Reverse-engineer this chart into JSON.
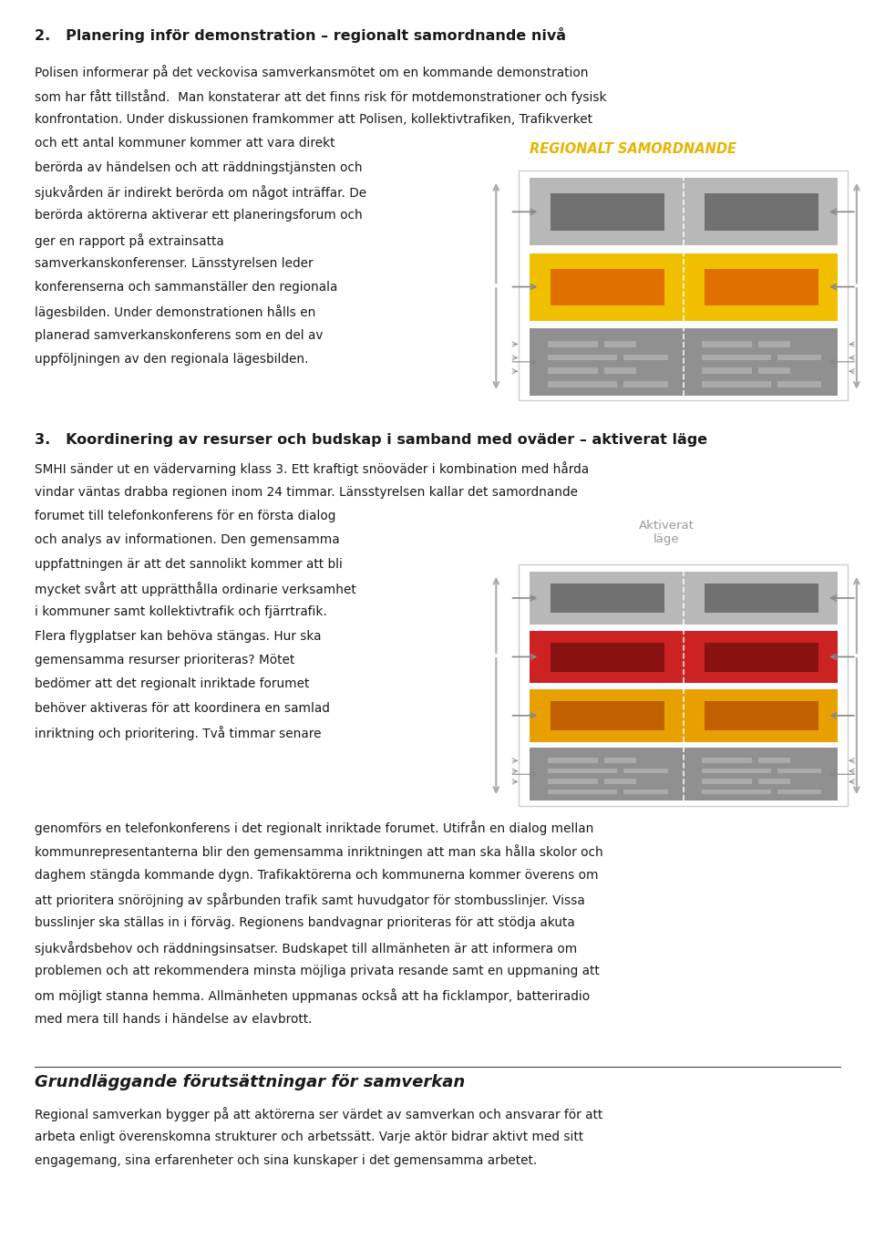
{
  "title2": "2.   Planering inför demonstration – regionalt samordnande nivå",
  "title3": "3.   Koordinering av resurser och budskap i samband med oväder – aktiverat läge",
  "title_bottom": "Grundläggande förutsättningar för samverkan",
  "label_regionalt": "REGIONALT SAMORDNANDE",
  "label_aktiverat": "Aktiverat\nläge",
  "bg_color": "#ffffff",
  "text_color": "#1a1a1a",
  "title_color": "#1a1a1a",
  "label_yellow_color": "#e8b400",
  "lines_s2_full": [
    "Polisen informerar på det veckovisa samverkansmötet om en kommande demonstration",
    "som har fått tillstånd.  Man konstaterar att det finns risk för motdemonstrationer och fysisk",
    "konfrontation. Under diskussionen framkommer att Polisen, kollektivtrafiken, Trafikverket",
    "och ett antal kommuner kommer att vara direkt"
  ],
  "lines_s2_narrow": [
    "berörda av händelsen och att räddningstjänsten och",
    "sjukvården är indirekt berörda om något inträffar. De",
    "berörda aktörerna aktiverar ett planeringsforum och",
    "ger en rapport på extrainsatta",
    "samverkanskonferenser. Länsstyrelsen leder",
    "konferenserna och sammanställer den regionala",
    "lägesbilden. Under demonstrationen hålls en",
    "planerad samverkanskonferens som en del av",
    "uppföljningen av den regionala lägesbilden."
  ],
  "lines_s3_full": [
    "SMHI sänder ut en vädervarning klass 3. Ett kraftigt snöoväder i kombination med hårda",
    "vindar väntas drabba regionen inom 24 timmar. Länsstyrelsen kallar det samordnande",
    "forumet till telefonkonferens för en första dialog"
  ],
  "lines_s3_narrow": [
    "och analys av informationen. Den gemensamma",
    "uppfattningen är att det sannolikt kommer att bli",
    "mycket svårt att upprätthålla ordinarie verksamhet",
    "i kommuner samt kollektivtrafik och fjärrtrafik.",
    "Flera flygplatser kan behöva stängas. Hur ska",
    "gemensamma resurser prioriteras? Mötet",
    "bedömer att det regionalt inriktade forumet",
    "behöver aktiveras för att koordinera en samlad",
    "inriktning och prioritering. Två timmar senare"
  ],
  "lines_s3_after": [
    "genomförs en telefonkonferens i det regionalt inriktade forumet. Utifrån en dialog mellan",
    "kommunrepresentanterna blir den gemensamma inriktningen att man ska hålla skolor och",
    "daghem stängda kommande dygn. Trafikaktörerna och kommunerna kommer överens om",
    "att prioritera snöröjning av spårbunden trafik samt huvudgator för stombusslinjer. Vissa",
    "busslinjer ska ställas in i förväg. Regionens bandvagnar prioriteras för att stödja akuta",
    "sjukvårdsbehov och räddningsinsatser. Budskapet till allmänheten är att informera om",
    "problemen och att rekommendera minsta möjliga privata resande samt en uppmaning att",
    "om möjligt stanna hemma. Allmänheten uppmanas också att ha ficklampor, batteriradio",
    "med mera till hands i händelse av elavbrott."
  ],
  "lines_bottom": [
    "Regional samverkan bygger på att aktörerna ser värdet av samverkan och ansvarar för att",
    "arbeta enligt överenskomna strukturer och arbetssätt. Varje aktör bidrar aktivt med sitt",
    "engagemang, sina erfarenheter och sina kunskaper i det gemensamma arbetet."
  ]
}
